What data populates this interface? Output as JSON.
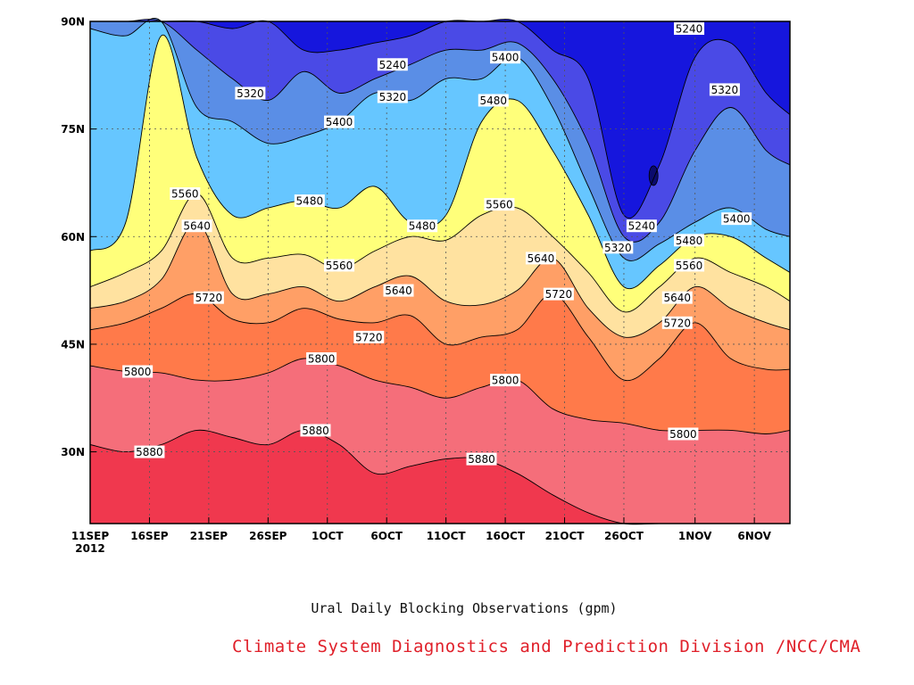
{
  "chart_data": {
    "type": "contour",
    "subtitle": "Ural Daily Blocking Observations (gpm)",
    "credit": "Climate System Diagnostics and Prediction Division /NCC/CMA",
    "x_ticks": [
      {
        "label": "11SEP",
        "day": 0,
        "sub": "2012"
      },
      {
        "label": "16SEP",
        "day": 5
      },
      {
        "label": "21SEP",
        "day": 10
      },
      {
        "label": "26SEP",
        "day": 15
      },
      {
        "label": "1OCT",
        "day": 20
      },
      {
        "label": "6OCT",
        "day": 25
      },
      {
        "label": "11OCT",
        "day": 30
      },
      {
        "label": "16OCT",
        "day": 35
      },
      {
        "label": "21OCT",
        "day": 40
      },
      {
        "label": "26OCT",
        "day": 45
      },
      {
        "label": "1NOV",
        "day": 51
      },
      {
        "label": "6NOV",
        "day": 56
      }
    ],
    "x_range_days": [
      0,
      59
    ],
    "y_ticks": [
      {
        "label": "30N",
        "lat": 30
      },
      {
        "label": "45N",
        "lat": 45
      },
      {
        "label": "60N",
        "lat": 60
      },
      {
        "label": "75N",
        "lat": 75
      },
      {
        "label": "90N",
        "lat": 90
      }
    ],
    "y_range_lat": [
      20,
      90
    ],
    "levels": [
      5240,
      5320,
      5400,
      5480,
      5560,
      5640,
      5720,
      5800,
      5880
    ],
    "band_colors": [
      "#0b0b6e",
      "#1616dd",
      "#4a4ae6",
      "#5a8ee6",
      "#66c6ff",
      "#ffff7a",
      "#ffe2a0",
      "#ff9f66",
      "#ff7a4a",
      "#f56e7a",
      "#f0384e"
    ],
    "contour_x_days": [
      0,
      3,
      6,
      9,
      12,
      15,
      18,
      21,
      24,
      27,
      30,
      33,
      36,
      39,
      42,
      45,
      48,
      51,
      54,
      57,
      59
    ],
    "contour_lats": [
      {
        "level": 5880,
        "lat": [
          31,
          30,
          31,
          33,
          32,
          31,
          33,
          31,
          27,
          28,
          29,
          29,
          27,
          24,
          21.5,
          20,
          20,
          20,
          20,
          20,
          20
        ]
      },
      {
        "level": 5800,
        "lat": [
          42,
          41.2,
          41,
          40,
          40,
          41,
          43,
          42,
          40,
          39,
          37.5,
          39,
          40,
          36,
          34.5,
          34,
          33,
          33,
          33,
          32.5,
          33
        ]
      },
      {
        "level": 5720,
        "lat": [
          47,
          48,
          50,
          52,
          48.5,
          48,
          50,
          48.5,
          48,
          49,
          45,
          46,
          47,
          52,
          46,
          40,
          43,
          48,
          43,
          41.5,
          41.5
        ]
      },
      {
        "level": 5640,
        "lat": [
          50,
          51,
          54,
          62,
          52,
          52,
          53,
          51,
          53,
          54.5,
          51,
          50.5,
          52.5,
          57,
          50,
          46,
          48,
          53,
          50,
          48,
          47
        ]
      },
      {
        "level": 5560,
        "lat": [
          53,
          55,
          58,
          66,
          57,
          57,
          57.5,
          55.5,
          58,
          60,
          59.5,
          63,
          64,
          60,
          55,
          49.5,
          53,
          57,
          55,
          53,
          51
        ]
      },
      {
        "level": 5480,
        "lat": [
          58,
          62,
          88,
          71,
          63,
          64,
          65,
          64,
          67,
          62,
          63,
          76,
          79,
          72,
          63,
          53,
          56,
          60,
          60,
          57,
          55
        ]
      },
      {
        "level": 5400,
        "lat": [
          89,
          88,
          90,
          78,
          76,
          73,
          74,
          76,
          80,
          79,
          82,
          82,
          85,
          78,
          67,
          57,
          59,
          62,
          64,
          61,
          60
        ]
      },
      {
        "level": 5320,
        "lat": [
          90,
          90,
          90,
          86,
          82,
          79,
          83,
          80,
          82,
          84,
          86,
          86,
          87,
          82,
          73,
          60,
          62,
          72,
          78,
          72,
          70
        ]
      },
      {
        "level": 5240,
        "lat": [
          90,
          90,
          90,
          90,
          89,
          90,
          86,
          86,
          87,
          88,
          90,
          90,
          90,
          86,
          82,
          63,
          70,
          85,
          87,
          80,
          77
        ]
      }
    ],
    "contour_labels": [
      {
        "text": "5880",
        "day": 5,
        "lat": 30
      },
      {
        "text": "5880",
        "day": 19,
        "lat": 33
      },
      {
        "text": "5880",
        "day": 33,
        "lat": 29
      },
      {
        "text": "5800",
        "day": 4,
        "lat": 41.2
      },
      {
        "text": "5800",
        "day": 19.5,
        "lat": 43
      },
      {
        "text": "5800",
        "day": 35,
        "lat": 40
      },
      {
        "text": "5800",
        "day": 50,
        "lat": 32.5
      },
      {
        "text": "5720",
        "day": 10,
        "lat": 51.5
      },
      {
        "text": "5720",
        "day": 23.5,
        "lat": 46
      },
      {
        "text": "5720",
        "day": 39.5,
        "lat": 52
      },
      {
        "text": "5720",
        "day": 49.5,
        "lat": 48
      },
      {
        "text": "5640",
        "day": 9,
        "lat": 61.5
      },
      {
        "text": "5640",
        "day": 26,
        "lat": 52.5
      },
      {
        "text": "5640",
        "day": 38,
        "lat": 57
      },
      {
        "text": "5640",
        "day": 49.5,
        "lat": 51.5
      },
      {
        "text": "5560",
        "day": 8,
        "lat": 66
      },
      {
        "text": "5560",
        "day": 21,
        "lat": 56
      },
      {
        "text": "5560",
        "day": 34.5,
        "lat": 64.5
      },
      {
        "text": "5560",
        "day": 50.5,
        "lat": 56
      },
      {
        "text": "5480",
        "day": 18.5,
        "lat": 65
      },
      {
        "text": "5480",
        "day": 28,
        "lat": 61.5
      },
      {
        "text": "5480",
        "day": 34,
        "lat": 79
      },
      {
        "text": "5480",
        "day": 50.5,
        "lat": 59.5
      },
      {
        "text": "5400",
        "day": 21,
        "lat": 76
      },
      {
        "text": "5400",
        "day": 35,
        "lat": 85
      },
      {
        "text": "5400",
        "day": 54.5,
        "lat": 62.5
      },
      {
        "text": "5320",
        "day": 13.5,
        "lat": 80
      },
      {
        "text": "5320",
        "day": 25.5,
        "lat": 79.5
      },
      {
        "text": "5320",
        "day": 44.5,
        "lat": 58.5
      },
      {
        "text": "5320",
        "day": 53.5,
        "lat": 80.5
      },
      {
        "text": "5240",
        "day": 25.5,
        "lat": 84
      },
      {
        "text": "5240",
        "day": 46.5,
        "lat": 61.5
      },
      {
        "text": "5240",
        "day": 50.5,
        "lat": 89
      }
    ],
    "grid": "dotted"
  }
}
